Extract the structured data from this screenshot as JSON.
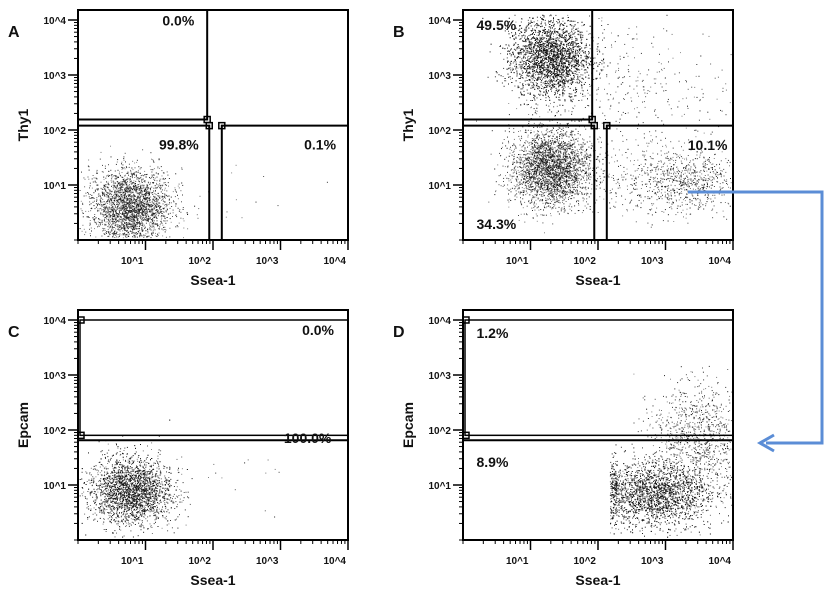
{
  "chart_data": [
    {
      "type": "scatter",
      "panel": "A",
      "xlabel": "Ssea-1",
      "ylabel": "Thy1",
      "xscale": "log",
      "yscale": "log",
      "xlim": [
        1,
        10000
      ],
      "ylim": [
        1,
        15000
      ],
      "x_ticks": [
        "10^1",
        "10^2",
        "10^3",
        "10^4"
      ],
      "y_ticks": [
        "10^1",
        "10^2",
        "10^3",
        "10^4"
      ],
      "gates": [
        {
          "region": "upper-left",
          "percent": "0.0%",
          "x_max": 82,
          "y_min": 155
        },
        {
          "region": "lower-left",
          "percent": "99.8%",
          "x_max": 88,
          "y_max": 120
        },
        {
          "region": "lower-right",
          "percent": "0.1%",
          "x_min": 135,
          "y_max": 120
        }
      ],
      "populations": [
        {
          "x_center": 6,
          "y_center": 4,
          "x_spread_decades": 0.3,
          "y_spread_decades": 0.35,
          "events": 2600
        },
        {
          "x_center": 300,
          "y_center": 5,
          "x_spread_decades": 0.6,
          "y_spread_decades": 0.4,
          "events": 12
        }
      ]
    },
    {
      "type": "scatter",
      "panel": "B",
      "xlabel": "Ssea-1",
      "ylabel": "Thy1",
      "xscale": "log",
      "yscale": "log",
      "xlim": [
        1,
        10000
      ],
      "ylim": [
        1,
        15000
      ],
      "x_ticks": [
        "10^1",
        "10^2",
        "10^3",
        "10^4"
      ],
      "y_ticks": [
        "10^1",
        "10^2",
        "10^3",
        "10^4"
      ],
      "gates": [
        {
          "region": "upper-left",
          "percent": "49.5%",
          "x_max": 82,
          "y_min": 155
        },
        {
          "region": "lower-left",
          "percent": "34.3%",
          "x_max": 88,
          "y_max": 120
        },
        {
          "region": "lower-right",
          "percent": "10.1%",
          "x_min": 135,
          "y_max": 120
        }
      ],
      "populations": [
        {
          "x_center": 20,
          "y_center": 2000,
          "x_spread_decades": 0.3,
          "y_spread_decades": 0.35,
          "events": 4000
        },
        {
          "x_center": 20,
          "y_center": 20,
          "x_spread_decades": 0.3,
          "y_spread_decades": 0.35,
          "events": 2800
        },
        {
          "x_center": 1500,
          "y_center": 12,
          "x_spread_decades": 0.5,
          "y_spread_decades": 0.3,
          "events": 900
        },
        {
          "x_center": 300,
          "y_center": 500,
          "x_spread_decades": 0.8,
          "y_spread_decades": 0.6,
          "events": 350
        }
      ]
    },
    {
      "type": "scatter",
      "panel": "C",
      "xlabel": "Ssea-1",
      "ylabel": "Epcam",
      "xscale": "log",
      "yscale": "log",
      "xlim": [
        1,
        10000
      ],
      "ylim": [
        1,
        15000
      ],
      "x_ticks": [
        "10^1",
        "10^2",
        "10^3",
        "10^4"
      ],
      "y_ticks": [
        "10^1",
        "10^2",
        "10^3",
        "10^4"
      ],
      "gates": [
        {
          "region": "upper",
          "percent": "0.0%",
          "y_min": 80,
          "y_max": 10000
        },
        {
          "region": "lower",
          "percent": "100.0%",
          "y_max": 65
        }
      ],
      "populations": [
        {
          "x_center": 6,
          "y_center": 8,
          "x_spread_decades": 0.3,
          "y_spread_decades": 0.3,
          "events": 3000
        },
        {
          "x_center": 200,
          "y_center": 10,
          "x_spread_decades": 0.5,
          "y_spread_decades": 0.3,
          "events": 15
        }
      ]
    },
    {
      "type": "scatter",
      "panel": "D",
      "xlabel": "Ssea-1",
      "ylabel": "Epcam",
      "xscale": "log",
      "yscale": "log",
      "xlim": [
        1,
        10000
      ],
      "ylim": [
        1,
        15000
      ],
      "x_ticks": [
        "10^1",
        "10^2",
        "10^3",
        "10^4"
      ],
      "y_ticks": [
        "10^1",
        "10^2",
        "10^3",
        "10^4"
      ],
      "gates": [
        {
          "region": "upper",
          "percent": "1.2%",
          "y_min": 80,
          "y_max": 10000
        },
        {
          "region": "lower",
          "percent": "8.9%",
          "y_max": 65
        }
      ],
      "populations": [
        {
          "x_center": 700,
          "y_center": 7,
          "x_min": 150,
          "x_spread_decades": 0.45,
          "y_spread_decades": 0.3,
          "events": 3200
        },
        {
          "x_center": 3000,
          "y_center": 80,
          "x_min": 150,
          "x_spread_decades": 0.35,
          "y_spread_decades": 0.45,
          "events": 900
        }
      ]
    }
  ],
  "annotation": {
    "arrow": "from panel B lower-right gate to panel D",
    "arrow_color": "#5b8dd6"
  },
  "colors": {
    "dots": "#111111",
    "gates": "#000000",
    "arrow": "#5b8dd6"
  }
}
